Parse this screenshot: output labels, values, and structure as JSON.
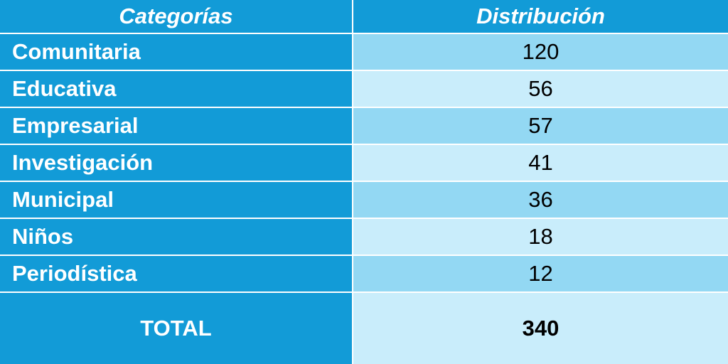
{
  "header": {
    "columns": [
      "Categorías",
      "Distribución"
    ]
  },
  "table": {
    "rows": [
      [
        "Comunitaria",
        120
      ],
      [
        "Educativa",
        56
      ],
      [
        "Empresarial",
        57
      ],
      [
        "Investigación",
        41
      ],
      [
        "Municipal",
        36
      ],
      [
        "Niños",
        18
      ],
      [
        "Periodística",
        12
      ]
    ]
  },
  "total": {
    "label": "TOTAL",
    "value": 340
  }
}
